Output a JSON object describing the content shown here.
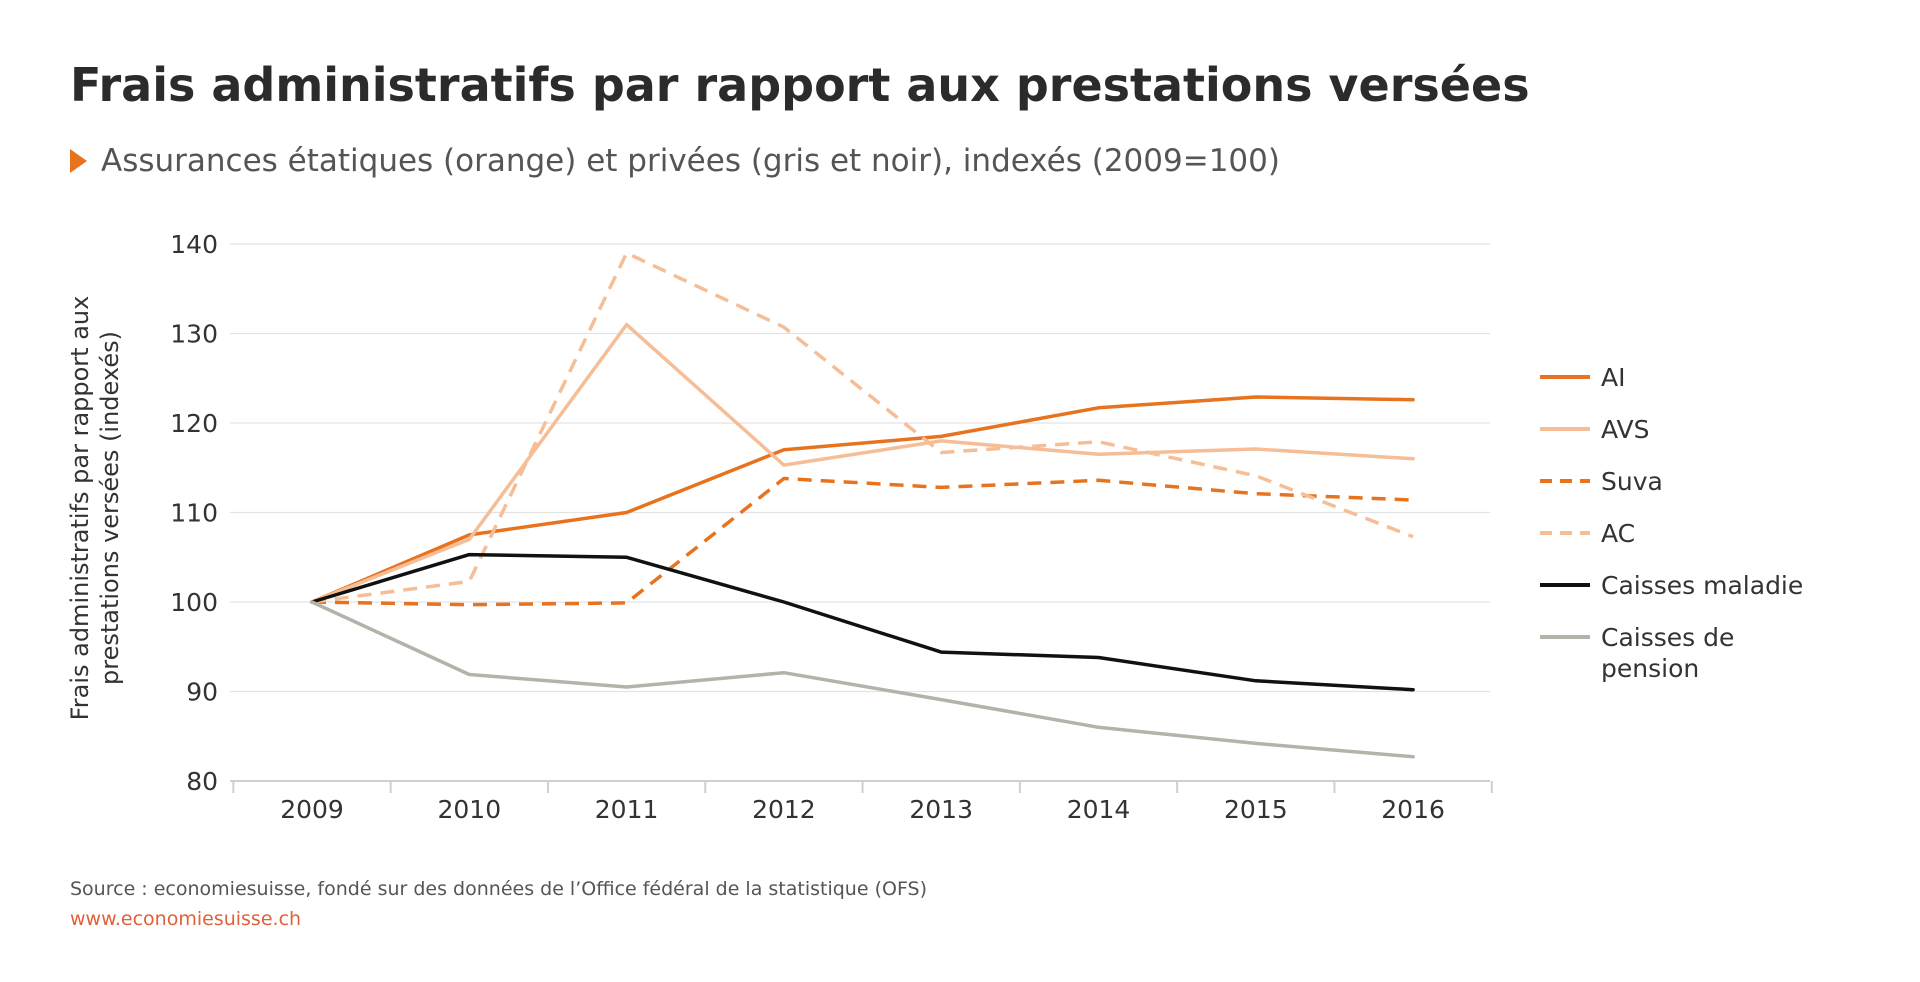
{
  "header": {
    "title": "Frais administratifs par rapport aux prestations versées",
    "subtitle": "Assurances étatiques (orange) et privées (gris et noir), indexés (2009=100)"
  },
  "footer": {
    "source": "Source : economiesuisse, fondé sur des données de l’Office fédéral de la statistique (OFS)",
    "website": "www.economiesuisse.ch"
  },
  "colors": {
    "accent": "#e8731e"
  },
  "chart_data": {
    "type": "line",
    "title": "Frais administratifs par rapport aux prestations versées",
    "subtitle": "Assurances étatiques (orange) et privées (gris et noir), indexés (2009=100)",
    "xlabel": "",
    "ylabel": "Frais administratifs par rapport aux prestations versées (indexés)",
    "ylabel_lines": [
      "Frais administratifs par rapport aux",
      "prestations versées (indexés)"
    ],
    "ylim": [
      80,
      140
    ],
    "yticks": [
      80,
      90,
      100,
      110,
      120,
      130,
      140
    ],
    "grid": true,
    "legend_position": "right",
    "categories": [
      "2009",
      "2010",
      "2011",
      "2012",
      "2013",
      "2014",
      "2015",
      "2016"
    ],
    "series": [
      {
        "name": "AI",
        "values": [
          100,
          107.5,
          110,
          117,
          118.5,
          121.7,
          122.9,
          122.6
        ],
        "color": "#e8731e",
        "dash": "solid"
      },
      {
        "name": "AVS",
        "values": [
          100,
          107,
          131,
          115.3,
          118,
          116.5,
          117.1,
          116
        ],
        "color": "#f5be96",
        "dash": "solid"
      },
      {
        "name": "Suva",
        "values": [
          100,
          99.7,
          99.9,
          113.8,
          112.8,
          113.6,
          112.1,
          111.4
        ],
        "color": "#e8731e",
        "dash": "dashed"
      },
      {
        "name": "AC",
        "values": [
          100,
          102.3,
          139,
          130.7,
          116.7,
          117.9,
          114.1,
          107.3
        ],
        "color": "#f5be96",
        "dash": "dashed"
      },
      {
        "name": "Caisses maladie",
        "values": [
          100,
          105.3,
          105,
          100,
          94.4,
          93.8,
          91.2,
          90.2
        ],
        "color": "#111111",
        "dash": "solid"
      },
      {
        "name": "Caisses de pension",
        "values": [
          100,
          91.9,
          90.5,
          92.1,
          89.1,
          86,
          84.2,
          82.7
        ],
        "color": "#b3b3aa",
        "dash": "solid"
      }
    ]
  }
}
